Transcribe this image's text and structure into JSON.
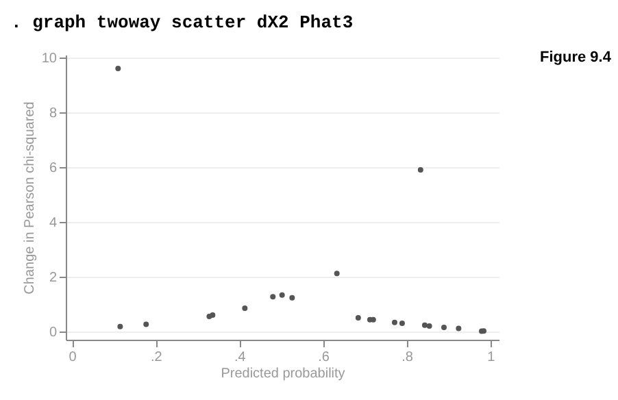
{
  "chart_data": {
    "type": "scatter",
    "annotations": [
      ". graph twoway scatter dX2 Phat3",
      "Figure 9.4"
    ],
    "xlabel": "Predicted probability",
    "ylabel": "Change in Pearson chi-squared",
    "x": [
      0.11,
      0.115,
      0.177,
      0.328,
      0.336,
      0.413,
      0.48,
      0.502,
      0.526,
      0.633,
      0.684,
      0.712,
      0.72,
      0.771,
      0.789,
      0.833,
      0.843,
      0.854,
      0.889,
      0.924,
      0.979,
      0.984
    ],
    "series": [
      {
        "color": "#555555",
        "values": [
          9.6,
          0.18,
          0.26,
          0.55,
          0.6,
          0.85,
          1.27,
          1.33,
          1.23,
          2.12,
          0.5,
          0.43,
          0.43,
          0.33,
          0.3,
          5.9,
          0.23,
          0.2,
          0.15,
          0.11,
          0.01,
          0.02
        ]
      }
    ],
    "xlim": [
      -0.015,
      1.02
    ],
    "ylim": [
      -0.3,
      10.1
    ],
    "xticks": [
      0,
      {
        "value": 0.2,
        "label": ".2"
      },
      {
        "value": 0.4,
        "label": ".4"
      },
      {
        "value": 0.6,
        "label": ".6"
      },
      {
        "value": 0.8,
        "label": ".8"
      },
      1
    ],
    "yticks": [
      0,
      2,
      4,
      6,
      8,
      10
    ],
    "grid": "y",
    "marker": "circle",
    "legend": false
  }
}
